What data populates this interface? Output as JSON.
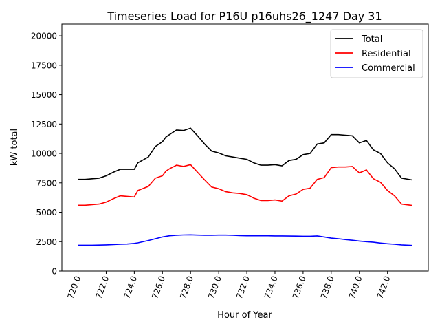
{
  "chart_data": {
    "type": "line",
    "title": "Timeseries Load for P16U p16uhs26_1247  Day 31",
    "xlabel": "Hour of Year",
    "ylabel": "kW total",
    "xlim": [
      718.85,
      744.9
    ],
    "ylim": [
      0,
      21000
    ],
    "xticks": [
      720,
      722,
      724,
      726,
      728,
      730,
      732,
      734,
      736,
      738,
      740,
      742
    ],
    "xtick_labels": [
      "720.0",
      "722.0",
      "724.0",
      "726.0",
      "728.0",
      "730.0",
      "732.0",
      "734.0",
      "736.0",
      "738.0",
      "740.0",
      "742.0"
    ],
    "yticks": [
      0,
      2500,
      5000,
      7500,
      10000,
      12500,
      15000,
      17500,
      20000
    ],
    "ytick_labels": [
      "0",
      "2500",
      "5000",
      "7500",
      "10000",
      "12500",
      "15000",
      "17500",
      "20000"
    ],
    "grid": false,
    "legend_placement": "top-right",
    "x": [
      720,
      720.5,
      721,
      721.5,
      722,
      722.5,
      723,
      723.5,
      724,
      724.25,
      725,
      725.5,
      726,
      726.25,
      726.5,
      727,
      727.5,
      728,
      728.5,
      729,
      729.5,
      730,
      730.5,
      731,
      731.5,
      732,
      732.5,
      733,
      733.5,
      734,
      734.5,
      735,
      735.5,
      736,
      736.5,
      737,
      737.5,
      738,
      738.5,
      739,
      739.5,
      740,
      740.5,
      741,
      741.5,
      742,
      742.5,
      743,
      743.75
    ],
    "series": [
      {
        "name": "Total",
        "color": "#000000",
        "values": [
          7800,
          7800,
          7850,
          7900,
          8100,
          8400,
          8650,
          8650,
          8650,
          9200,
          9700,
          10600,
          11000,
          11400,
          11600,
          12000,
          11950,
          12150,
          11500,
          10800,
          10200,
          10050,
          9800,
          9700,
          9600,
          9500,
          9200,
          9000,
          9000,
          9050,
          8950,
          9400,
          9500,
          9900,
          10000,
          10800,
          10900,
          11600,
          11600,
          11550,
          11500,
          10900,
          11100,
          10300,
          10000,
          9200,
          8700,
          7900,
          7750
        ]
      },
      {
        "name": "Residential",
        "color": "#ff0000",
        "values": [
          5600,
          5600,
          5650,
          5700,
          5870,
          6150,
          6400,
          6350,
          6300,
          6850,
          7200,
          7900,
          8100,
          8500,
          8700,
          9000,
          8900,
          9050,
          8400,
          7750,
          7150,
          7000,
          6750,
          6650,
          6600,
          6500,
          6200,
          6000,
          6000,
          6050,
          5950,
          6400,
          6550,
          6950,
          7050,
          7800,
          7950,
          8800,
          8850,
          8850,
          8900,
          8350,
          8600,
          7850,
          7550,
          6850,
          6400,
          5700,
          5580
        ]
      },
      {
        "name": "Commercial",
        "color": "#0000ff",
        "values": [
          2200,
          2200,
          2200,
          2210,
          2230,
          2250,
          2280,
          2300,
          2350,
          2400,
          2600,
          2750,
          2900,
          2950,
          3000,
          3050,
          3070,
          3080,
          3060,
          3050,
          3050,
          3060,
          3060,
          3040,
          3020,
          3000,
          3000,
          3000,
          3000,
          2990,
          2990,
          2980,
          2970,
          2960,
          2960,
          2990,
          2900,
          2800,
          2750,
          2680,
          2620,
          2550,
          2500,
          2450,
          2380,
          2320,
          2280,
          2230,
          2180
        ]
      }
    ]
  }
}
